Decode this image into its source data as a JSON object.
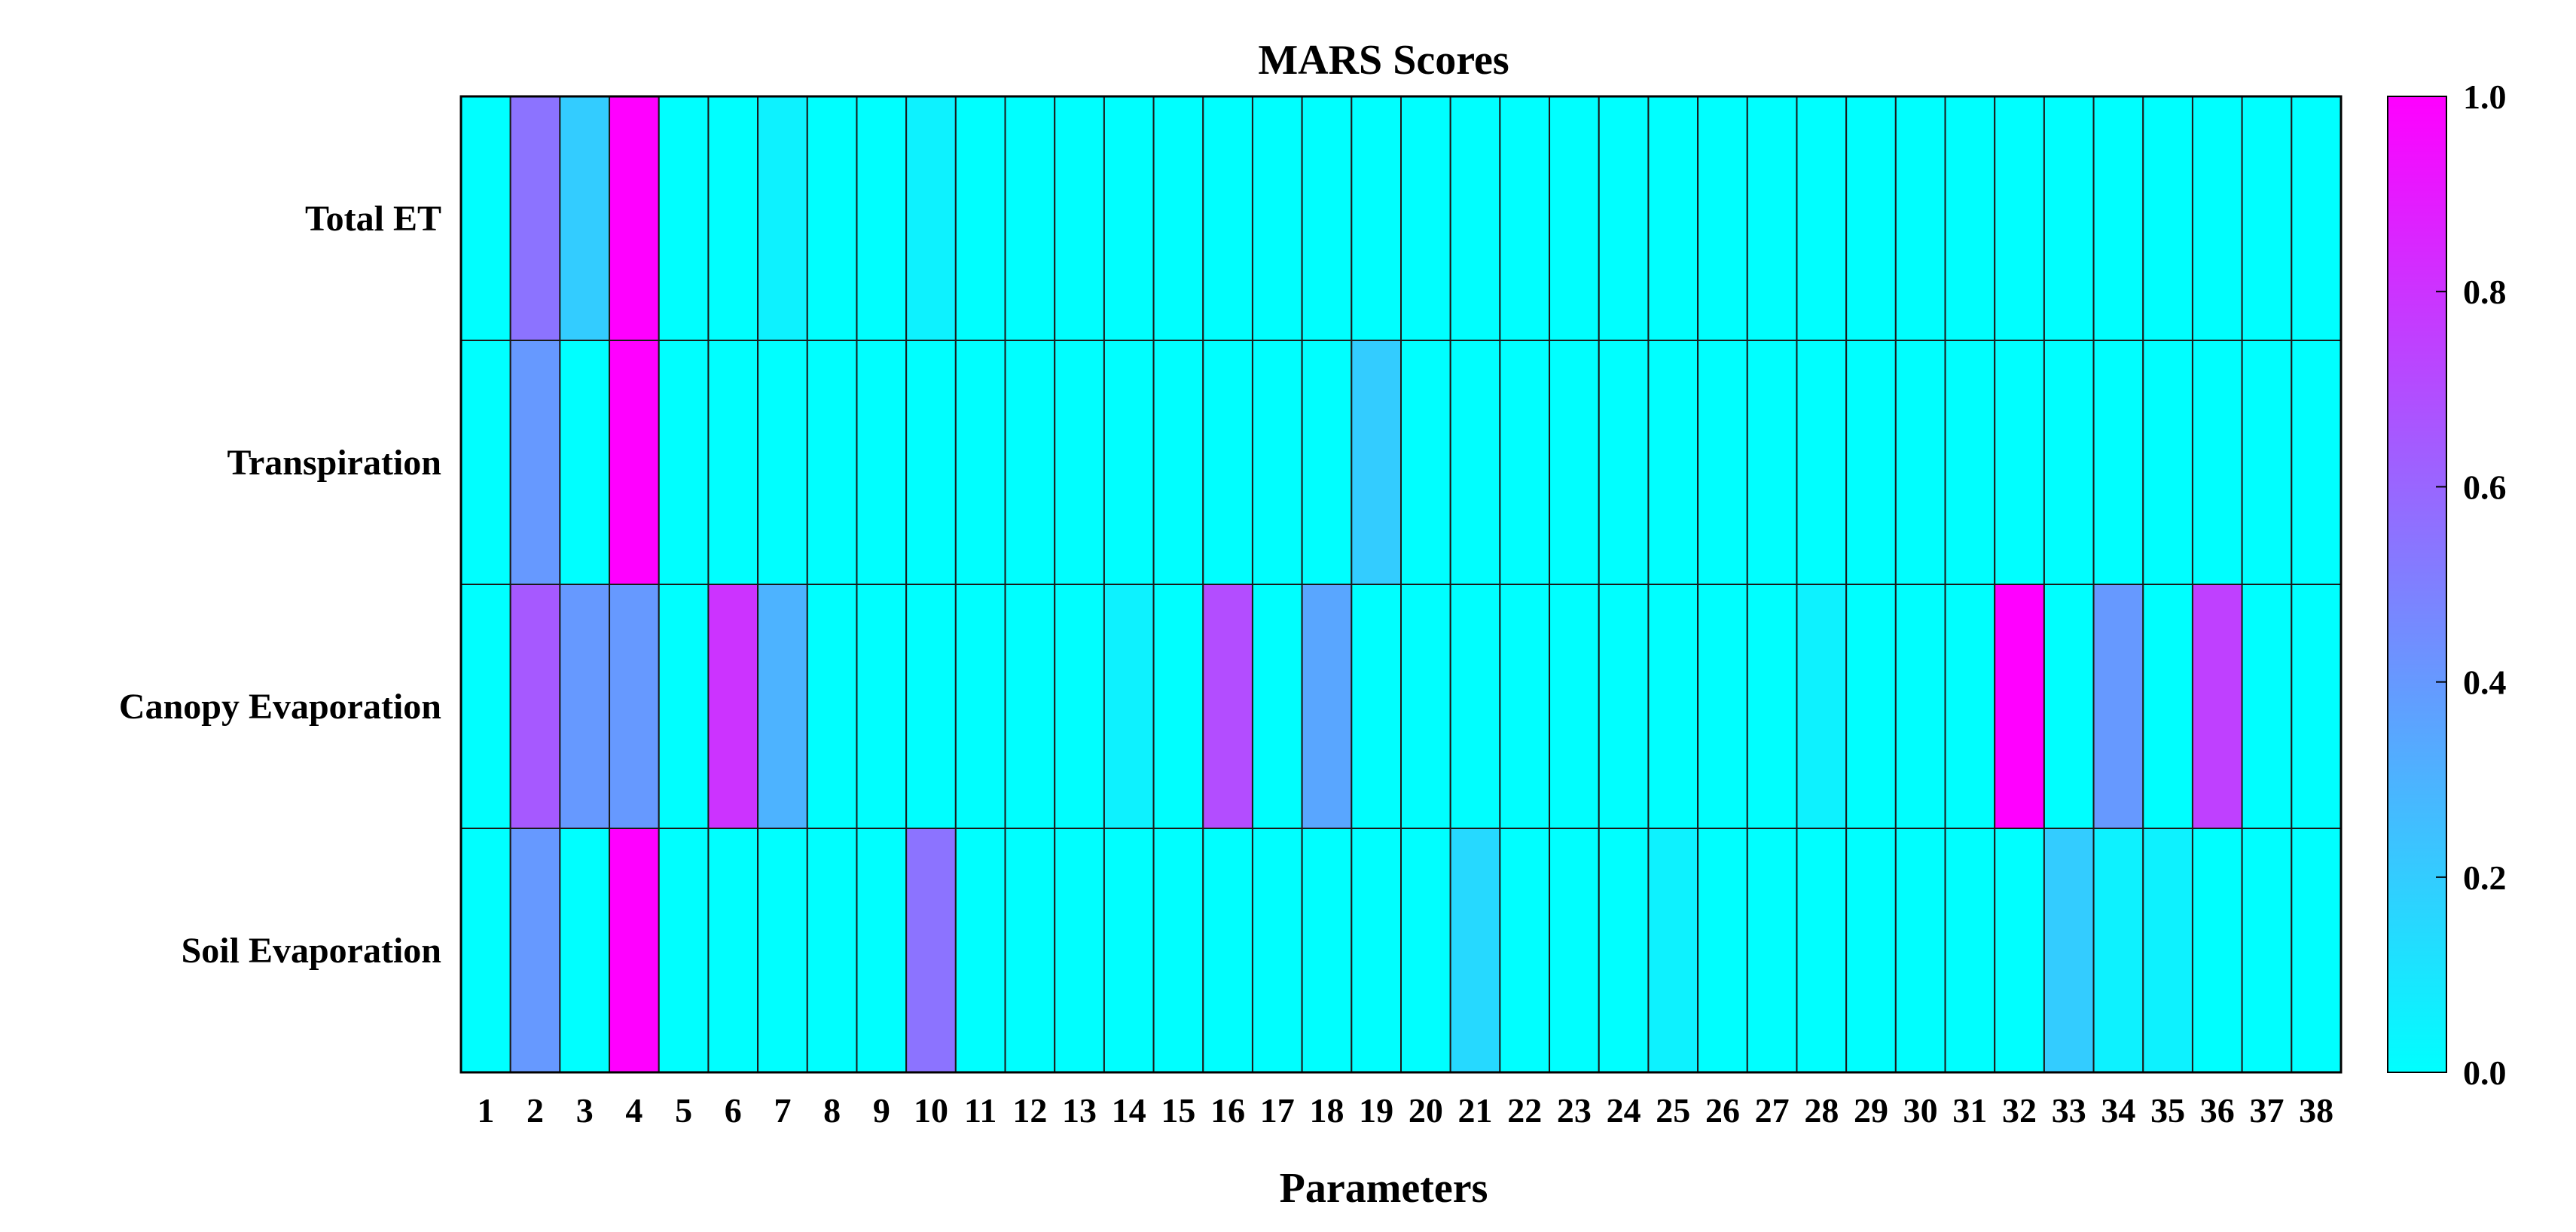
{
  "chart_data": {
    "type": "heatmap",
    "title": "MARS Scores",
    "xlabel": "Parameters",
    "ylabel": "",
    "rows": [
      "Total ET",
      "Transpiration",
      "Canopy Evaporation",
      "Soil Evaporation"
    ],
    "columns": [
      "1",
      "2",
      "3",
      "4",
      "5",
      "6",
      "7",
      "8",
      "9",
      "10",
      "11",
      "12",
      "13",
      "14",
      "15",
      "16",
      "17",
      "18",
      "19",
      "20",
      "21",
      "22",
      "23",
      "24",
      "25",
      "26",
      "27",
      "28",
      "29",
      "30",
      "31",
      "32",
      "33",
      "34",
      "35",
      "36",
      "37",
      "38"
    ],
    "values": [
      [
        0.0,
        0.55,
        0.2,
        1.0,
        0.0,
        0.0,
        0.05,
        0.0,
        0.0,
        0.05,
        0.0,
        0.0,
        0.0,
        0.0,
        0.0,
        0.0,
        0.0,
        0.0,
        0.0,
        0.0,
        0.0,
        0.0,
        0.0,
        0.0,
        0.0,
        0.0,
        0.0,
        0.0,
        0.0,
        0.0,
        0.0,
        0.0,
        0.0,
        0.0,
        0.0,
        0.0,
        0.0,
        0.0
      ],
      [
        0.0,
        0.4,
        0.0,
        1.0,
        0.0,
        0.0,
        0.0,
        0.0,
        0.0,
        0.0,
        0.0,
        0.0,
        0.0,
        0.0,
        0.0,
        0.0,
        0.0,
        0.0,
        0.2,
        0.0,
        0.0,
        0.0,
        0.0,
        0.0,
        0.0,
        0.0,
        0.0,
        0.0,
        0.0,
        0.0,
        0.0,
        0.0,
        0.0,
        0.0,
        0.0,
        0.0,
        0.0,
        0.0
      ],
      [
        0.0,
        0.65,
        0.4,
        0.4,
        0.0,
        0.8,
        0.3,
        0.0,
        0.0,
        0.0,
        0.0,
        0.0,
        0.0,
        0.05,
        0.0,
        0.7,
        0.0,
        0.35,
        0.0,
        0.0,
        0.0,
        0.0,
        0.0,
        0.0,
        0.0,
        0.0,
        0.0,
        0.05,
        0.0,
        0.0,
        0.0,
        1.0,
        0.0,
        0.4,
        0.0,
        0.75,
        0.0,
        0.0
      ],
      [
        0.0,
        0.4,
        0.0,
        1.0,
        0.0,
        0.0,
        0.0,
        0.0,
        0.0,
        0.55,
        0.0,
        0.0,
        0.0,
        0.0,
        0.0,
        0.0,
        0.0,
        0.0,
        0.0,
        0.0,
        0.15,
        0.0,
        0.0,
        0.0,
        0.05,
        0.0,
        0.0,
        0.0,
        0.0,
        0.0,
        0.0,
        0.0,
        0.2,
        0.05,
        0.05,
        0.0,
        0.0,
        0.0
      ]
    ],
    "colorbar": {
      "range": [
        0.0,
        1.0
      ],
      "ticks": [
        "0.0",
        "0.2",
        "0.4",
        "0.6",
        "0.8",
        "1.0"
      ],
      "colormap": "cool",
      "low_color": "#00ffff",
      "high_color": "#ff00ff"
    },
    "grid": true,
    "legend": "colorbar-right"
  }
}
